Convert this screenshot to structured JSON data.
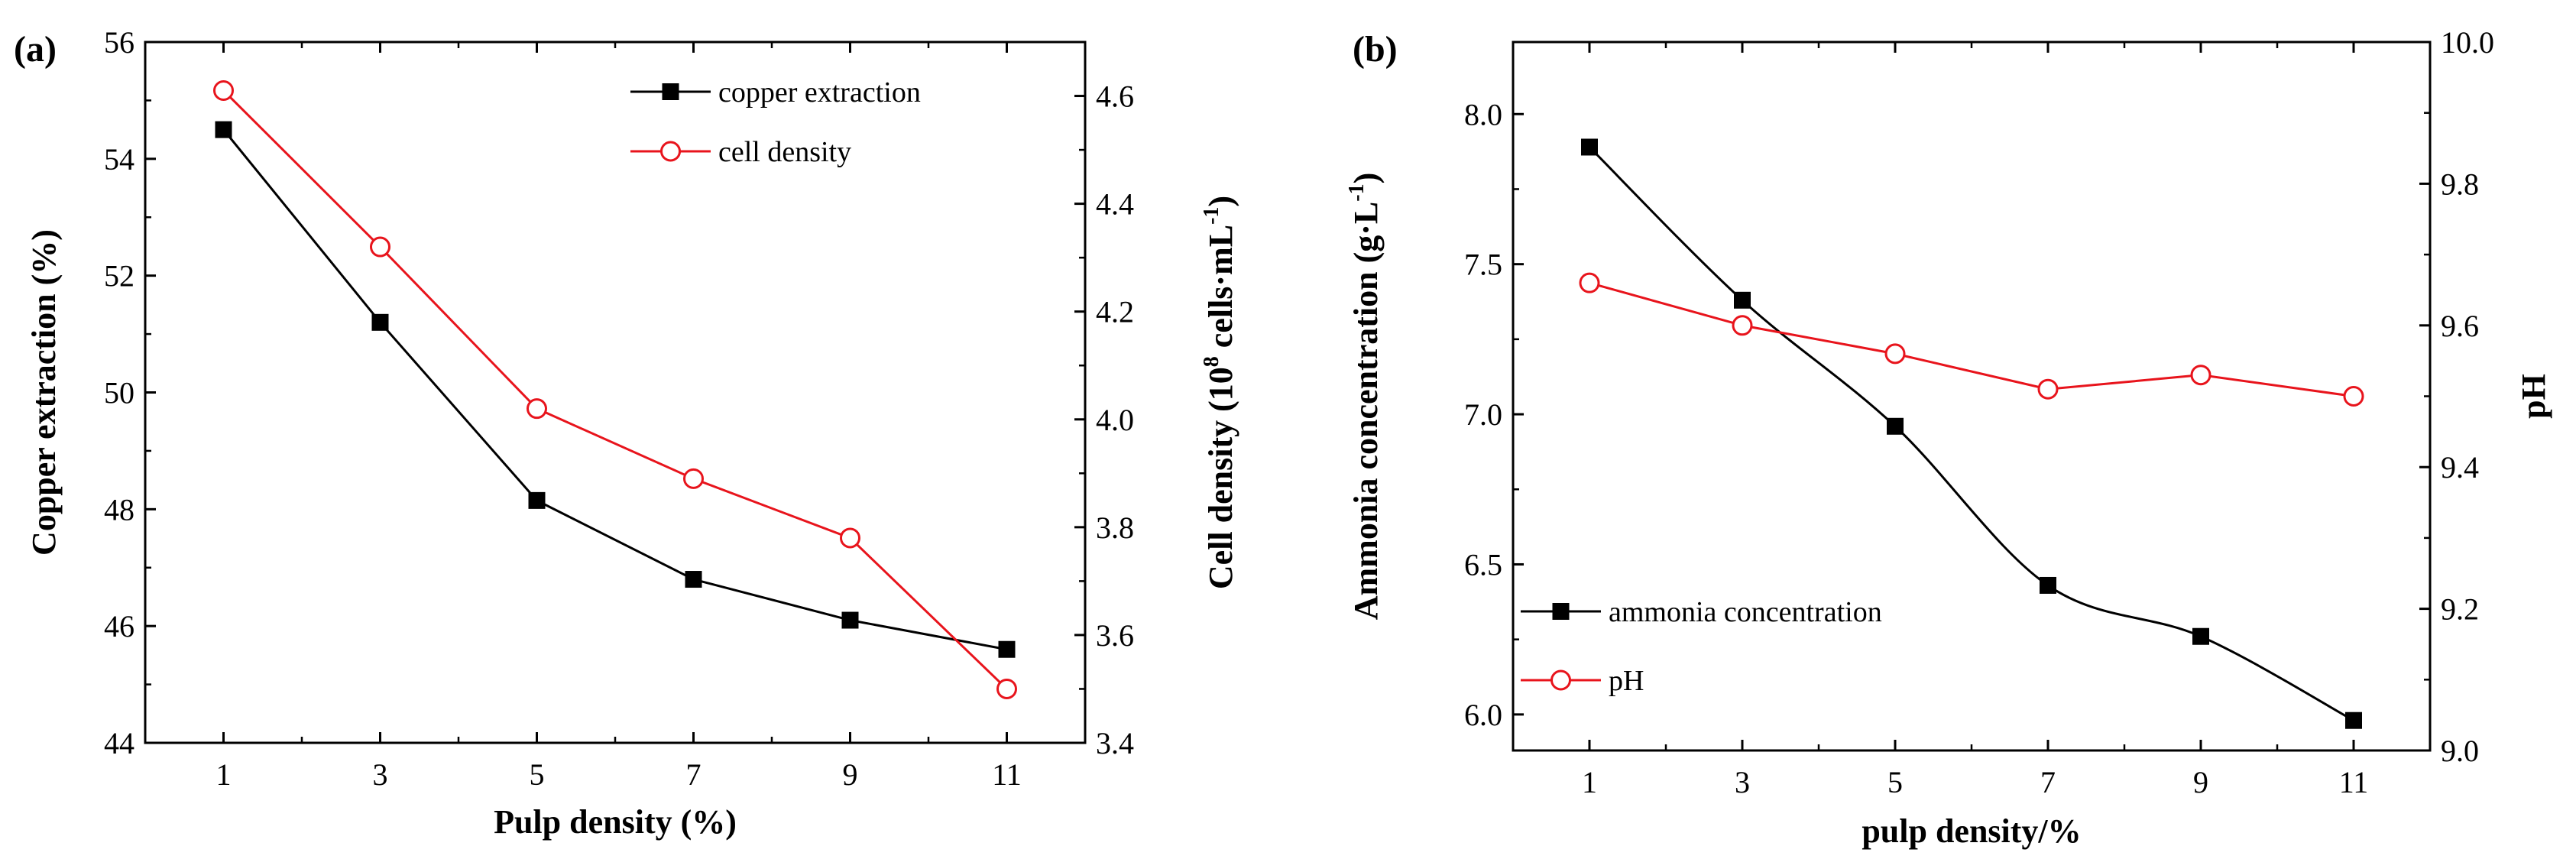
{
  "chart_data": [
    {
      "type": "line",
      "panel_label": "(a)",
      "xlabel": "Pulp density (%)",
      "ylabel_left": "Copper extraction (%)",
      "ylabel_right_prefix": "Cell density (10",
      "ylabel_right_sup1": "8",
      "ylabel_right_mid": " cells·mL",
      "ylabel_right_sup2": "-1",
      "ylabel_right_suffix": ")",
      "xlim": [
        0,
        12
      ],
      "x_ticks": [
        1,
        3,
        5,
        7,
        9,
        11
      ],
      "y_left_lim": [
        44,
        56
      ],
      "y_left_ticks": [
        44,
        46,
        48,
        50,
        52,
        54,
        56
      ],
      "y_right_lim": [
        3.4,
        4.7
      ],
      "y_right_ticks": [
        3.4,
        3.6,
        3.8,
        4.0,
        4.2,
        4.4,
        4.6
      ],
      "y_right_tick_labels": [
        "3.4",
        "3.6",
        "3.8",
        "4.0",
        "4.2",
        "4.4",
        "4.6"
      ],
      "grid": false,
      "legend": "top-right",
      "series": [
        {
          "name": "copper extraction",
          "axis": "left",
          "color": "#000000",
          "marker": "filled-square",
          "curve": "straight",
          "x": [
            1,
            3,
            5,
            7,
            9,
            11
          ],
          "y": [
            54.5,
            51.2,
            48.15,
            46.8,
            46.1,
            45.6
          ]
        },
        {
          "name": "cell density",
          "axis": "right",
          "color": "#e8141c",
          "marker": "open-circle",
          "curve": "straight",
          "x": [
            1,
            3,
            5,
            7,
            9,
            11
          ],
          "y": [
            4.61,
            4.32,
            4.02,
            3.89,
            3.78,
            3.5
          ]
        }
      ]
    },
    {
      "type": "line",
      "panel_label": "(b)",
      "xlabel": "pulp density/%",
      "ylabel_left_prefix": "Ammonia concentration (g·L",
      "ylabel_left_sup": "-1",
      "ylabel_left_suffix": ")",
      "ylabel_right": "pH",
      "xlim": [
        0,
        12
      ],
      "x_ticks": [
        1,
        3,
        5,
        7,
        9,
        11
      ],
      "y_left_lim": [
        5.88,
        8.24
      ],
      "y_left_ticks": [
        6.0,
        6.5,
        7.0,
        7.5,
        8.0
      ],
      "y_left_tick_labels": [
        "6.0",
        "6.5",
        "7.0",
        "7.5",
        "8.0"
      ],
      "y_right_lim": [
        9.0,
        10.0
      ],
      "y_right_ticks": [
        9.0,
        9.2,
        9.4,
        9.6,
        9.8,
        10.0
      ],
      "y_right_tick_labels": [
        "9.0",
        "9.2",
        "9.4",
        "9.6",
        "9.8",
        "10.0"
      ],
      "grid": false,
      "legend": "bottom-left",
      "series": [
        {
          "name": "ammonia concentration",
          "axis": "left",
          "color": "#000000",
          "marker": "filled-square",
          "curve": "smooth",
          "x": [
            1,
            3,
            5,
            7,
            9,
            11
          ],
          "y": [
            7.89,
            7.38,
            6.96,
            6.43,
            6.26,
            5.98
          ]
        },
        {
          "name": "pH",
          "axis": "right",
          "color": "#e8141c",
          "marker": "open-circle",
          "curve": "straight",
          "x": [
            1,
            3,
            5,
            7,
            9,
            11
          ],
          "y": [
            9.66,
            9.6,
            9.56,
            9.51,
            9.53,
            9.5
          ]
        }
      ]
    }
  ]
}
